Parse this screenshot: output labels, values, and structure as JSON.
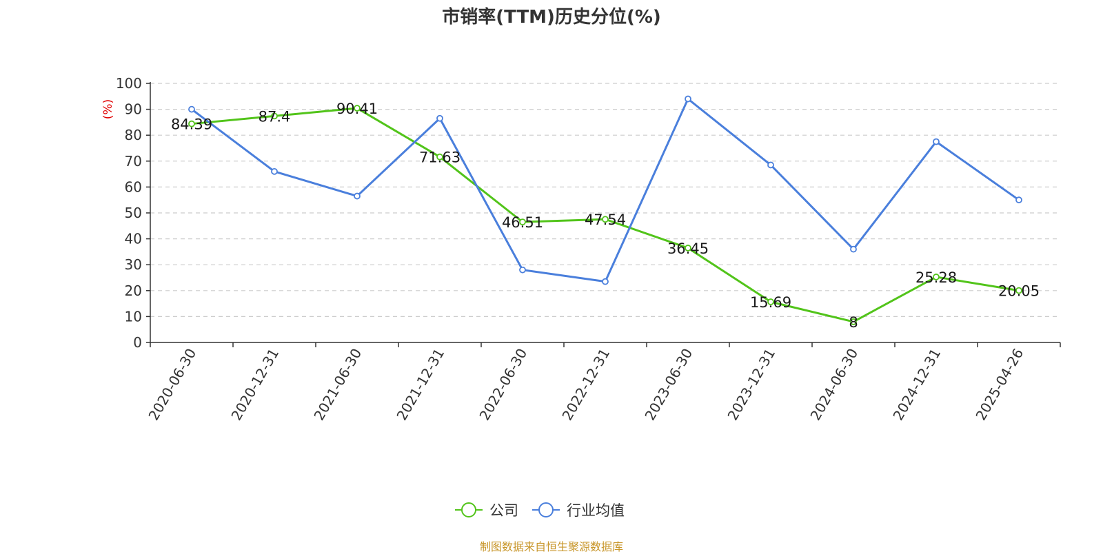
{
  "title": "市销率(TTM)历史分位(%)",
  "source": "制图数据来自恒生聚源数据库",
  "colors": {
    "company": "#52c41a",
    "industry": "#4a7fdc",
    "grid": "#cccccc",
    "axis": "#333333",
    "ylabel": "#e00000",
    "source": "#c8962a"
  },
  "chart_data": {
    "type": "line",
    "title": "市销率(TTM)历史分位(%)",
    "ylabel": "(%)",
    "xlabel": "",
    "ylim": [
      0,
      100
    ],
    "y_ticks": [
      0,
      10,
      20,
      30,
      40,
      50,
      60,
      70,
      80,
      90,
      100
    ],
    "grid": true,
    "legend_position": "bottom-center",
    "categories": [
      "2020-06-30",
      "2020-12-31",
      "2021-06-30",
      "2021-12-31",
      "2022-06-30",
      "2022-12-31",
      "2023-06-30",
      "2023-12-31",
      "2024-06-30",
      "2024-12-31",
      "2025-04-26"
    ],
    "series": [
      {
        "name": "公司",
        "color": "#52c41a",
        "show_labels": true,
        "values": [
          84.39,
          87.4,
          90.41,
          71.63,
          46.51,
          47.54,
          36.45,
          15.69,
          8,
          25.28,
          20.05
        ]
      },
      {
        "name": "行业均值",
        "color": "#4a7fdc",
        "show_labels": false,
        "values": [
          90,
          66,
          56.5,
          86.5,
          28,
          23.5,
          94,
          68.5,
          36,
          77.5,
          55
        ]
      }
    ]
  }
}
